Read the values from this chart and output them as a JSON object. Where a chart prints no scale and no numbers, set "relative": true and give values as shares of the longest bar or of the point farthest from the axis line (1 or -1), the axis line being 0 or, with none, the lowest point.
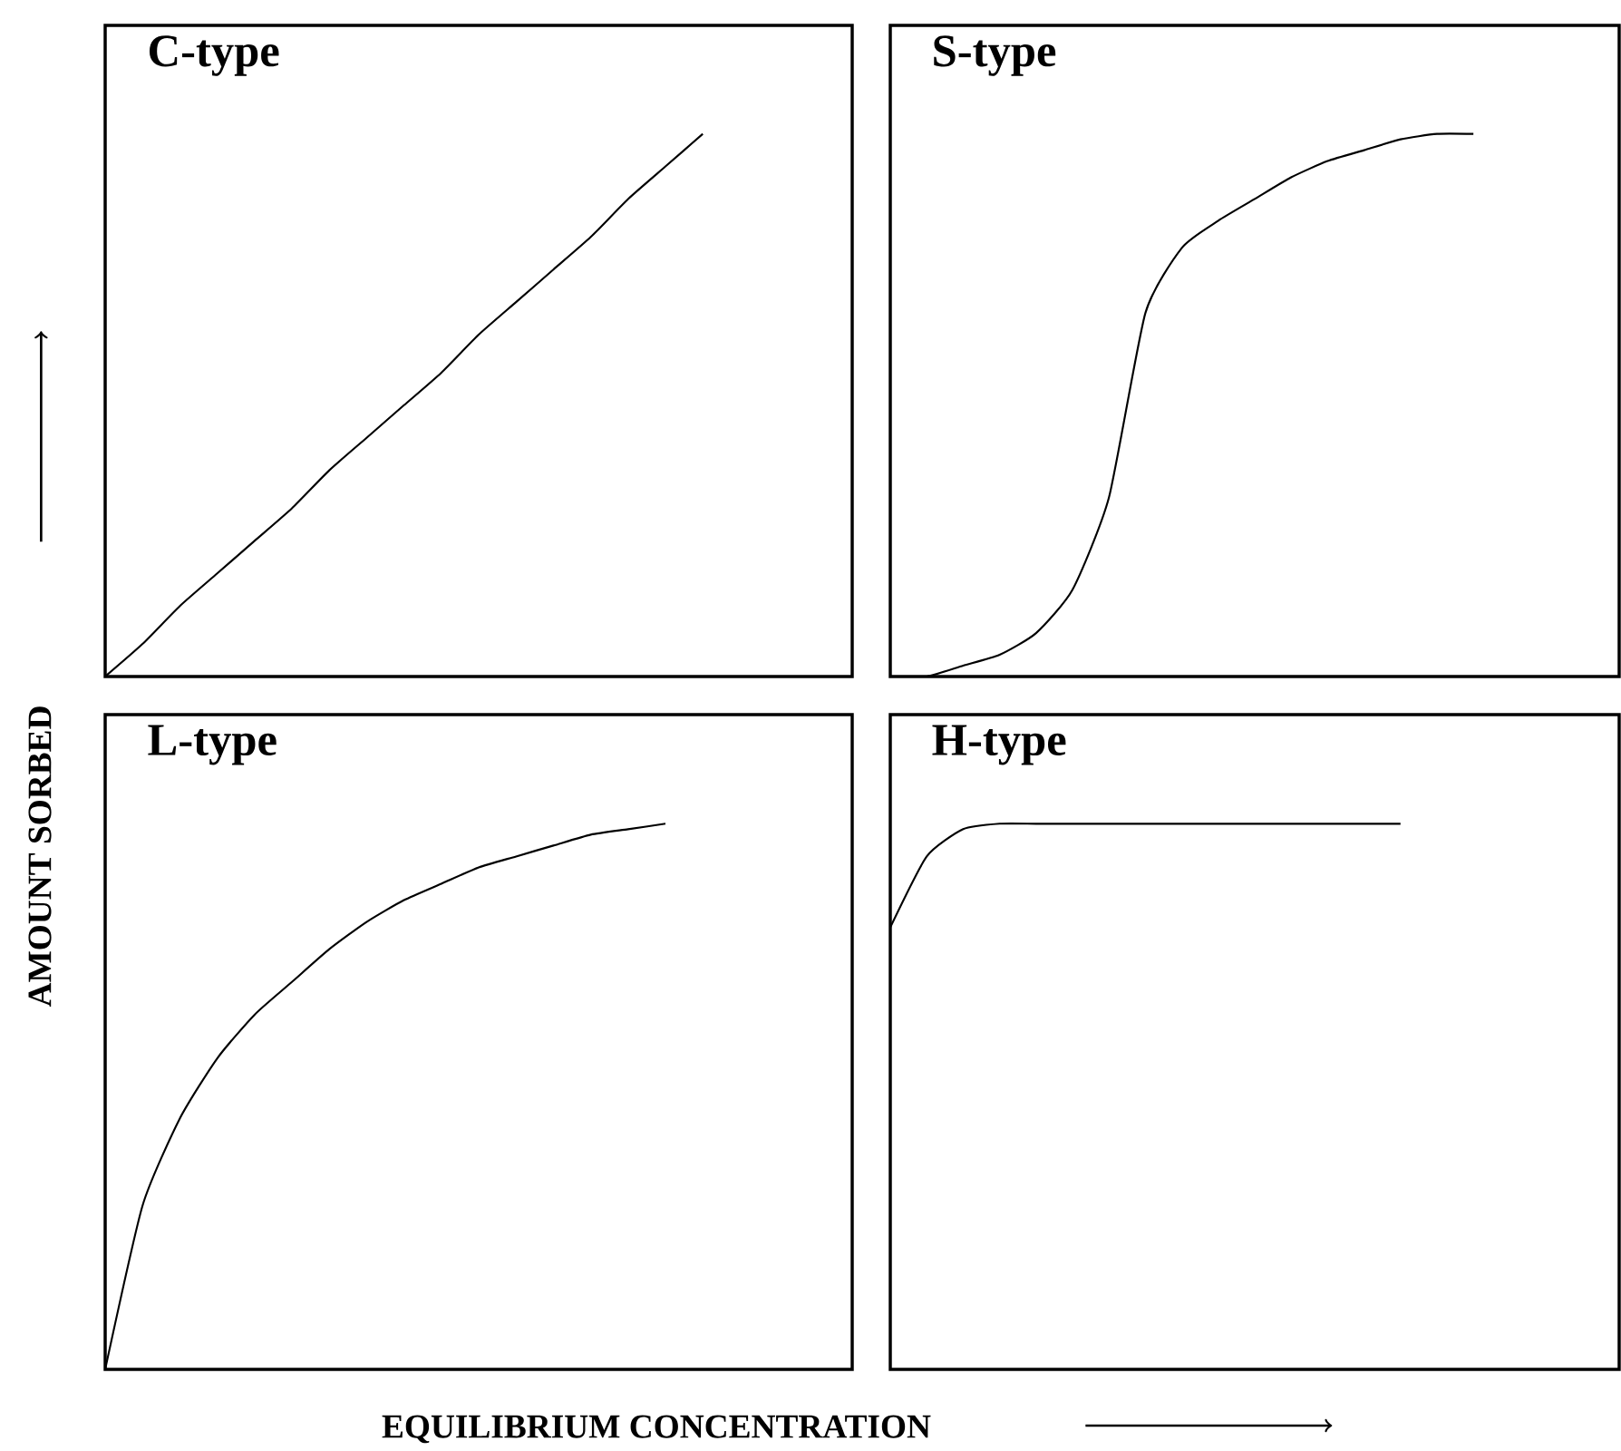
{
  "chart_data": [
    {
      "type": "line",
      "title": "C-type",
      "ylabel": "AMOUNT SORBED",
      "relative": true,
      "tick_labels": false,
      "marker": "none",
      "line_style": "solid",
      "color": "#000000",
      "categories": [
        null,
        null,
        null,
        null,
        null,
        null,
        null,
        null,
        null,
        null,
        null,
        null,
        null,
        null,
        null,
        null,
        null,
        null,
        null,
        null,
        null
      ],
      "values": [
        0,
        0.06,
        0.13,
        0.19,
        0.25,
        0.31,
        0.38,
        0.44,
        0.5,
        0.56,
        0.63,
        0.69,
        0.75,
        0.81,
        0.88,
        0.94,
        1,
        null,
        null,
        null,
        null
      ]
    },
    {
      "type": "line",
      "title": "S-type",
      "relative": true,
      "tick_labels": false,
      "marker": "none",
      "line_style": "solid",
      "color": "#000000",
      "categories": [
        null,
        null,
        null,
        null,
        null,
        null,
        null,
        null,
        null,
        null,
        null,
        null,
        null,
        null,
        null,
        null,
        null,
        null,
        null,
        null,
        null
      ],
      "values": [
        0,
        0,
        0.02,
        0.04,
        0.08,
        0.16,
        0.33,
        0.67,
        0.79,
        0.84,
        0.88,
        0.92,
        0.95,
        0.97,
        0.99,
        1,
        1,
        null,
        null,
        null,
        null
      ]
    },
    {
      "type": "line",
      "title": "L-type",
      "xlabel": "EQUILIBRIUM CONCENTRATION",
      "relative": true,
      "tick_labels": false,
      "marker": "none",
      "line_style": "solid",
      "color": "#000000",
      "categories": [
        null,
        null,
        null,
        null,
        null,
        null,
        null,
        null,
        null,
        null,
        null,
        null,
        null,
        null,
        null,
        null,
        null,
        null,
        null,
        null,
        null
      ],
      "values": [
        0,
        0.3,
        0.46,
        0.57,
        0.65,
        0.71,
        0.77,
        0.82,
        0.86,
        0.89,
        0.92,
        0.94,
        0.96,
        0.98,
        0.99,
        1,
        null,
        null,
        null,
        null,
        null
      ]
    },
    {
      "type": "line",
      "title": "H-type",
      "relative": true,
      "tick_labels": false,
      "marker": "none",
      "line_style": "solid",
      "color": "#000000",
      "categories": [
        null,
        null,
        null,
        null,
        null,
        null,
        null,
        null,
        null,
        null,
        null,
        null,
        null,
        null,
        null,
        null,
        null,
        null,
        null,
        null,
        null
      ],
      "values": [
        0.81,
        0.94,
        0.99,
        1,
        1,
        1,
        1,
        1,
        1,
        1,
        1,
        1,
        1,
        1,
        1,
        null,
        null,
        null,
        null,
        null,
        null
      ]
    }
  ]
}
